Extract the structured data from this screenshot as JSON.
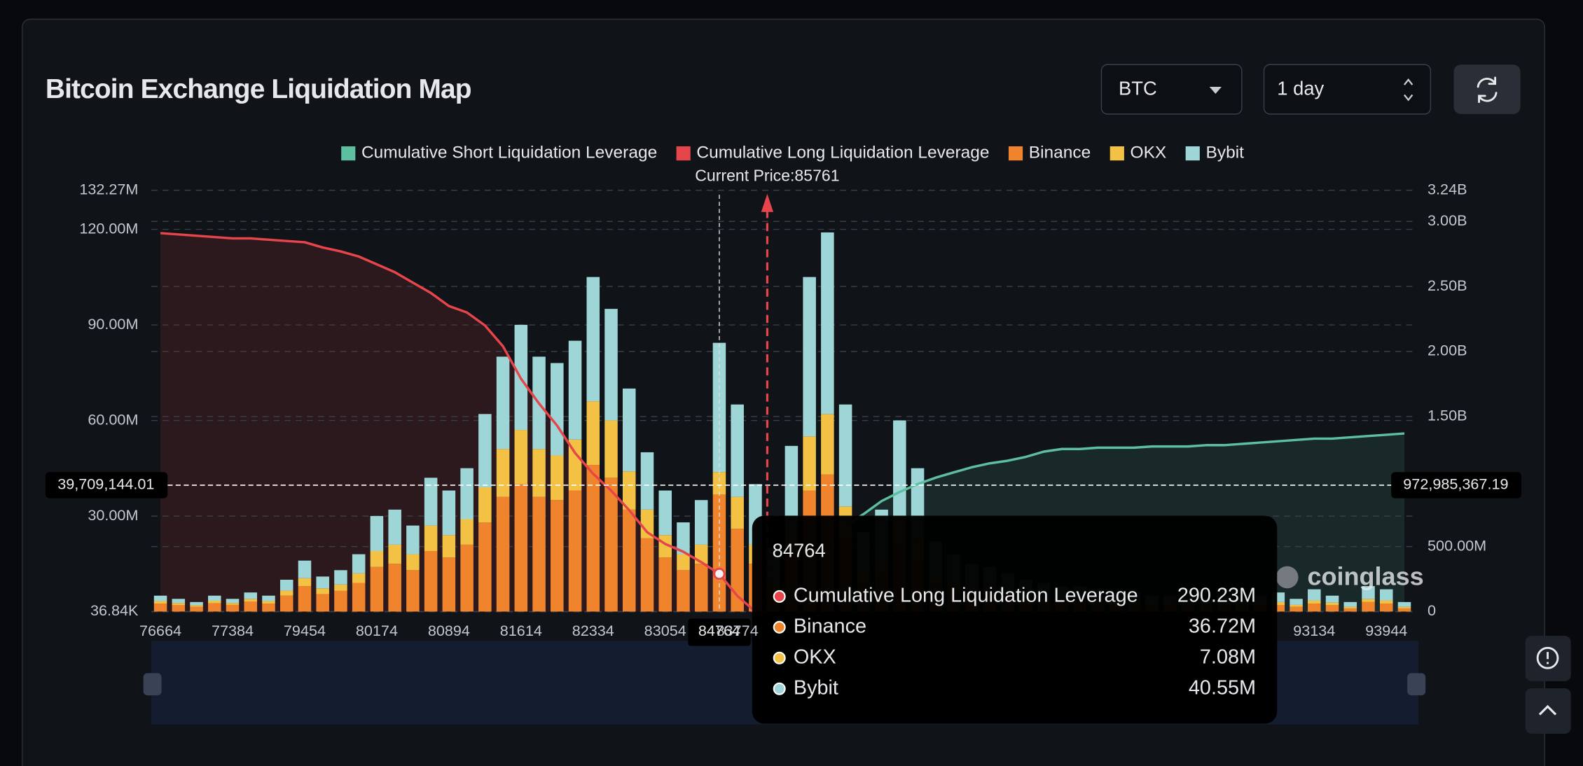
{
  "chart_data": {
    "type": "bar",
    "title": "Bitcoin Exchange Liquidation Map",
    "categories": [
      "76664",
      null,
      null,
      null,
      "77384",
      null,
      null,
      null,
      "79454",
      null,
      null,
      null,
      "80174",
      null,
      null,
      null,
      "80894",
      null,
      null,
      null,
      "81614",
      null,
      null,
      null,
      "82334",
      null,
      null,
      null,
      "83054",
      null,
      null,
      null,
      "83774",
      null,
      null,
      null,
      null,
      null,
      null,
      null,
      null,
      null,
      null,
      null,
      null,
      null,
      null,
      null,
      null,
      null,
      null,
      null,
      null,
      null,
      null,
      null,
      null,
      null,
      null,
      null,
      null,
      null,
      null,
      null,
      "93134",
      null,
      null,
      null,
      "93944",
      null
    ],
    "series": [
      {
        "name": "Cumulative Short Liquidation Leverage",
        "type": "line",
        "axis": "y2",
        "color": "#5dbf9f",
        "values": [
          null,
          null,
          null,
          null,
          null,
          null,
          null,
          null,
          null,
          null,
          null,
          null,
          null,
          null,
          null,
          null,
          null,
          null,
          null,
          null,
          null,
          null,
          null,
          null,
          null,
          null,
          null,
          null,
          null,
          null,
          null,
          null,
          null,
          null,
          null,
          null,
          null,
          null,
          660000000,
          750000000,
          850000000,
          920000000,
          980000000,
          1030000000,
          1070000000,
          1110000000,
          1140000000,
          1160000000,
          1190000000,
          1230000000,
          1250000000,
          1250000000,
          1260000000,
          1260000000,
          1260000000,
          1270000000,
          1270000000,
          1270000000,
          1280000000,
          1280000000,
          1290000000,
          1300000000,
          1310000000,
          1320000000,
          1330000000,
          1330000000,
          1340000000,
          1350000000,
          1360000000,
          1370000000
        ]
      },
      {
        "name": "Cumulative Long Liquidation Leverage",
        "type": "line",
        "axis": "y2",
        "color": "#e5454b",
        "values": [
          2910000000,
          2900000000,
          2890000000,
          2880000000,
          2870000000,
          2870000000,
          2860000000,
          2850000000,
          2840000000,
          2800000000,
          2770000000,
          2730000000,
          2670000000,
          2610000000,
          2530000000,
          2450000000,
          2350000000,
          2300000000,
          2200000000,
          2040000000,
          1790000000,
          1600000000,
          1430000000,
          1220000000,
          1060000000,
          930000000,
          780000000,
          610000000,
          520000000,
          460000000,
          380000000,
          290230000,
          120000000,
          0,
          null,
          null,
          null,
          null,
          null,
          null,
          null,
          null,
          null,
          null,
          null,
          null,
          null,
          null,
          null,
          null,
          null,
          null,
          null,
          null,
          null,
          null,
          null,
          null,
          null,
          null,
          null,
          null,
          null,
          null,
          null,
          null,
          null,
          null,
          null,
          null
        ]
      },
      {
        "name": "Binance",
        "type": "bar",
        "color": "#f0842c",
        "values": [
          2500000,
          2000000,
          1500000,
          2600000,
          2100000,
          3100000,
          2500000,
          5000000,
          8000000,
          5500000,
          6500000,
          9000000,
          14000000,
          15000000,
          13000000,
          19000000,
          17000000,
          21000000,
          28000000,
          36000000,
          40000000,
          36000000,
          35000000,
          38000000,
          46000000,
          42000000,
          32000000,
          23000000,
          17000000,
          13000000,
          15000000,
          36720000,
          26000000,
          15000000,
          7000000,
          18000000,
          38000000,
          43000000,
          23000000,
          9000000,
          11000000,
          21000000,
          16000000,
          8000000,
          6000000,
          5000000,
          5000000,
          4000000,
          3500000,
          3000000,
          3000000,
          3000000,
          2500000,
          2000000,
          2000000,
          2000000,
          2000000,
          1500000,
          1500000,
          2000000,
          1500000,
          2000000,
          2000000,
          1500000,
          2500000,
          2000000,
          1000000,
          3000000,
          2500000,
          1000000
        ]
      },
      {
        "name": "OKX",
        "type": "bar",
        "color": "#f3c244",
        "values": [
          800000,
          700000,
          500000,
          800000,
          600000,
          900000,
          800000,
          1600000,
          2500000,
          1800000,
          2000000,
          3000000,
          5000000,
          6000000,
          5000000,
          8000000,
          7000000,
          8000000,
          11000000,
          15000000,
          17000000,
          15000000,
          14000000,
          16000000,
          20000000,
          18000000,
          12000000,
          9000000,
          7000000,
          5000000,
          6000000,
          7080000,
          10000000,
          6000000,
          3000000,
          8000000,
          17000000,
          19000000,
          10000000,
          4000000,
          5000000,
          9000000,
          7000000,
          3000000,
          3000000,
          2000000,
          2000000,
          2000000,
          1500000,
          1500000,
          1000000,
          1000000,
          1000000,
          1000000,
          1000000,
          800000,
          800000,
          600000,
          600000,
          800000,
          600000,
          800000,
          1000000,
          600000,
          1000000,
          800000,
          500000,
          1000000,
          1000000,
          500000
        ]
      },
      {
        "name": "Bybit",
        "type": "bar",
        "color": "#9ed6d8",
        "values": [
          1700000,
          1300000,
          1000000,
          1600000,
          1300000,
          2000000,
          1700000,
          3400000,
          5500000,
          3700000,
          4500000,
          6000000,
          11000000,
          11000000,
          9000000,
          15000000,
          14000000,
          16000000,
          23000000,
          29000000,
          33000000,
          29000000,
          29000000,
          31000000,
          39000000,
          35000000,
          26000000,
          18000000,
          14000000,
          10000000,
          14000000,
          40550000,
          29000000,
          19000000,
          10000000,
          26000000,
          50000000,
          57000000,
          32000000,
          12000000,
          16000000,
          30000000,
          22000000,
          11000000,
          9000000,
          8000000,
          7000000,
          6000000,
          5000000,
          4500000,
          4000000,
          4000000,
          3500000,
          3000000,
          3000000,
          2200000,
          2200000,
          1900000,
          1900000,
          2200000,
          1900000,
          2200000,
          3000000,
          1900000,
          3500000,
          2200000,
          1500000,
          4000000,
          3500000,
          1500000
        ]
      }
    ],
    "ylim": [
      36840,
      132270000
    ],
    "yticks": [
      {
        "value": 36840,
        "label": "36.84K"
      },
      {
        "value": 30000000,
        "label": "30.00M"
      },
      {
        "value": 60000000,
        "label": "60.00M"
      },
      {
        "value": 90000000,
        "label": "90.00M"
      },
      {
        "value": 120000000,
        "label": "120.00M"
      },
      {
        "value": 132270000,
        "label": "132.27M"
      }
    ],
    "y2lim": [
      0,
      3240000000
    ],
    "y2ticks": [
      0,
      {
        "value": 500000000,
        "label": "500.00M"
      },
      {
        "value": 1500000000,
        "label": "1.50B"
      },
      {
        "value": 2000000000,
        "label": "2.00B"
      },
      {
        "value": 2500000000,
        "label": "2.50B"
      },
      {
        "value": 3000000000,
        "label": "3.00B"
      },
      {
        "value": 3240000000,
        "label": "3.24B"
      }
    ],
    "grid": true,
    "annotation": "Current Price:85761",
    "crosshair": {
      "y": {
        "value": 39709144.01,
        "label": "39,709,144.01"
      },
      "y2": {
        "value": 972985367.19,
        "label": "972,985,367.19"
      }
    },
    "tooltip": {
      "title": "84764",
      "values": [
        "290.23M",
        "36.72M",
        "7.08M",
        "40.55M"
      ]
    },
    "watermark": "coinglass"
  },
  "controls": {
    "symbol": "BTC",
    "period": "1 day"
  }
}
